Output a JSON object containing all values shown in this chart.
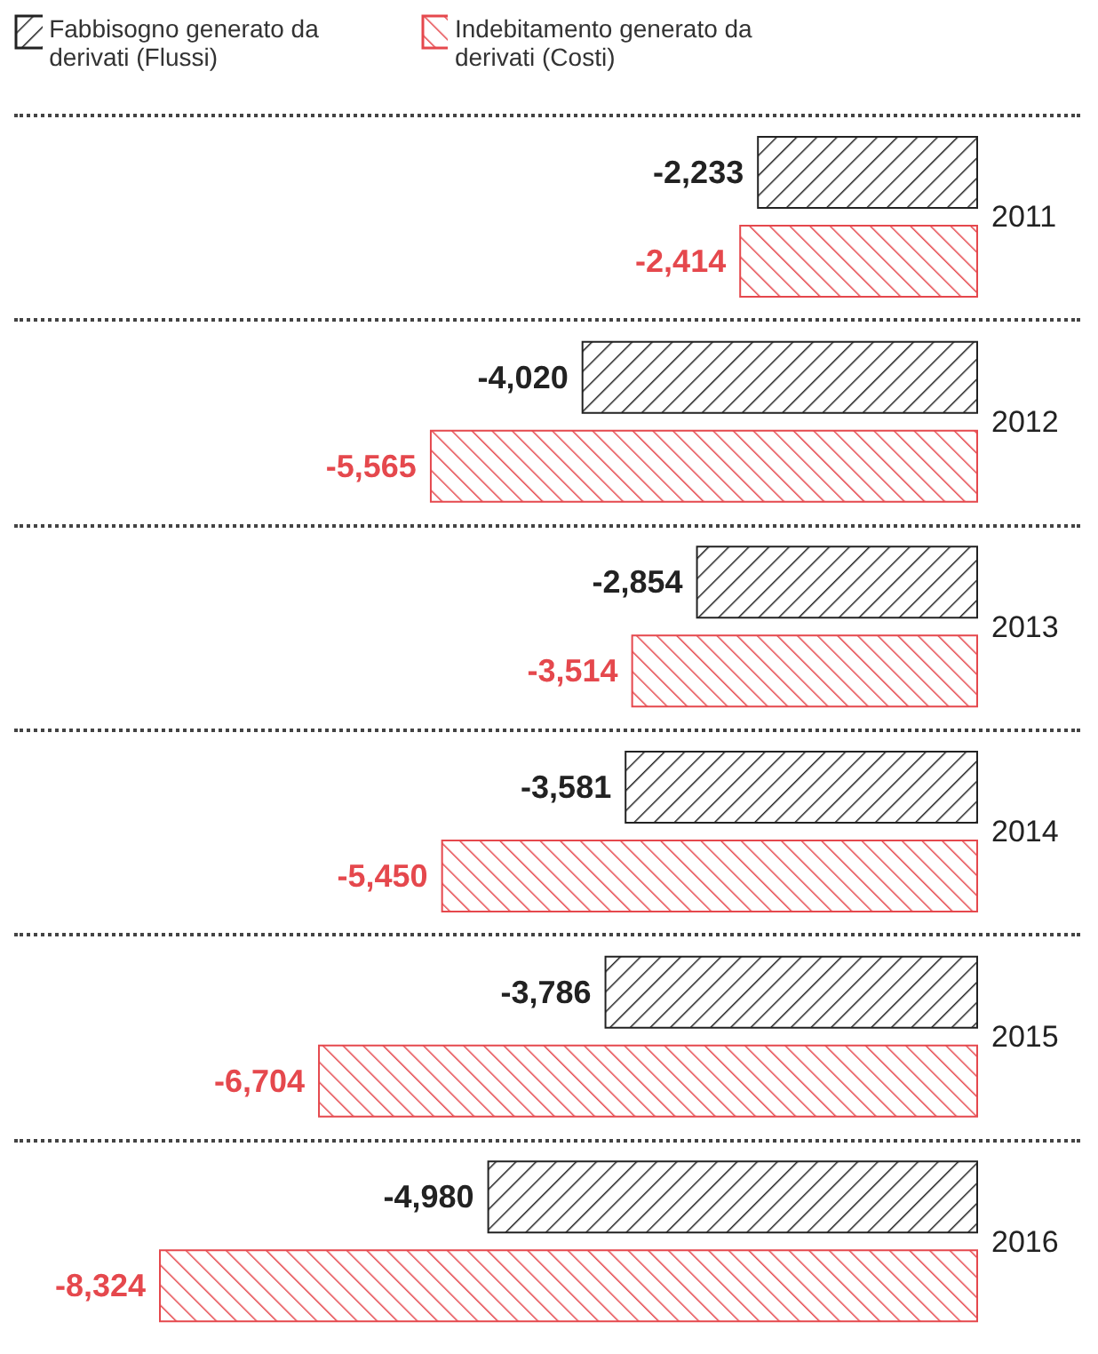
{
  "chart_data": {
    "type": "bar",
    "orientation": "horizontal",
    "categories": [
      "2011",
      "2012",
      "2013",
      "2014",
      "2015",
      "2016"
    ],
    "series": [
      {
        "name": "Fabbisogno generato da derivati (Flussi)",
        "color": "#222222",
        "values": [
          -2233,
          -4020,
          -2854,
          -3581,
          -3786,
          -4980
        ],
        "value_labels": [
          "-2,233",
          "-4,020",
          "-2,854",
          "-3,581",
          "-3,786",
          "-4,980"
        ]
      },
      {
        "name": "Indebitamento generato da derivati (Costi)",
        "color": "#e5484d",
        "values": [
          -2414,
          -5565,
          -3514,
          -5450,
          -6704,
          -8324
        ],
        "value_labels": [
          "-2,414",
          "-5,565",
          "-3,514",
          "-5,450",
          "-6,704",
          "-8,324"
        ]
      }
    ],
    "legend": "top left"
  }
}
